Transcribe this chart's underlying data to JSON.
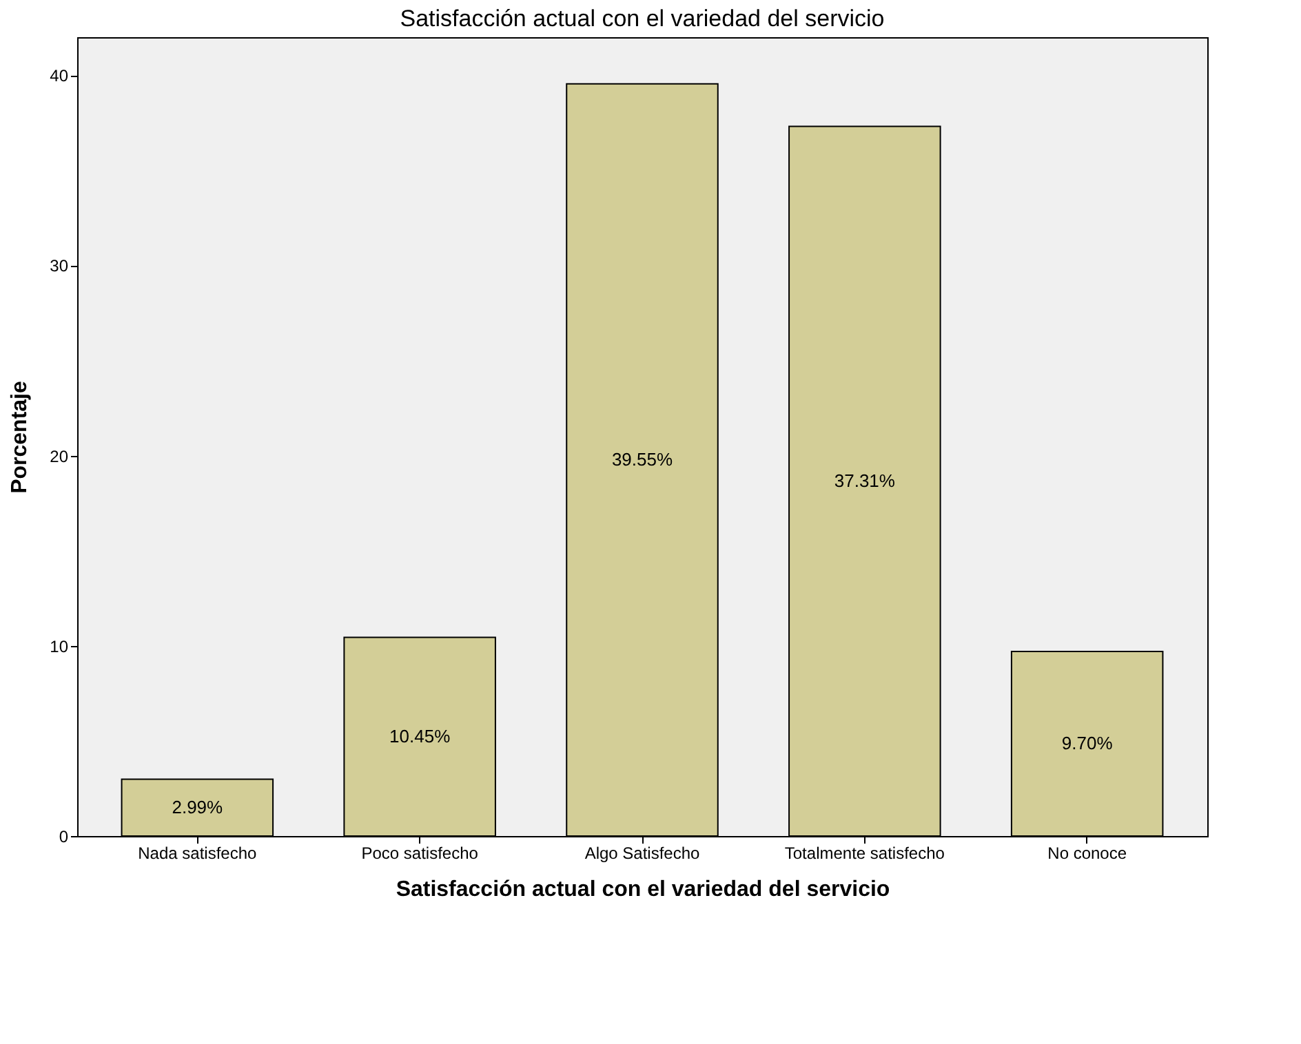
{
  "chart_data": {
    "type": "bar",
    "title": "Satisfacción actual con el variedad del servicio",
    "xlabel": "Satisfacción actual con el variedad del servicio",
    "ylabel": "Porcentaje",
    "categories": [
      "Nada satisfecho",
      "Poco satisfecho",
      "Algo Satisfecho",
      "Totalmente satisfecho",
      "No conoce"
    ],
    "values": [
      2.99,
      10.45,
      39.55,
      37.31,
      9.7
    ],
    "value_labels": [
      "2.99%",
      "10.45%",
      "39.55%",
      "37.31%",
      "9.70%"
    ],
    "color": "#d3ce97",
    "ylim": [
      0,
      42
    ],
    "yticks": [
      0,
      10,
      20,
      30,
      40
    ],
    "grid": false
  }
}
